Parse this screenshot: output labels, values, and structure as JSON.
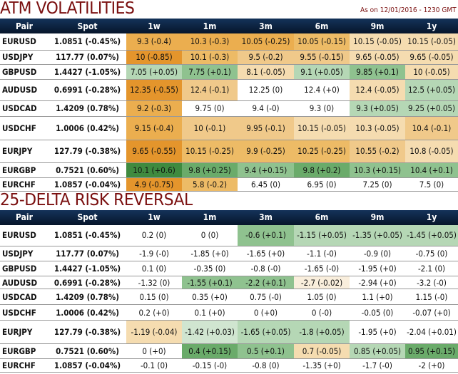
{
  "palette": {
    "D": "#e4952c",
    "O": "#ebae4f",
    "M": "#edbb66",
    "N": "#f0c98a",
    "L": "#f5dcb0",
    "P": "#f9eedc",
    "W": "#ffffff",
    "G0": "#3f8a3f",
    "G1": "#6aab6a",
    "G2": "#8fc28f",
    "G3": "#b5d7b5",
    "G4": "#d0e5d0"
  },
  "columns": [
    "Pair",
    "Spot",
    "1w",
    "1m",
    "3m",
    "6m",
    "9m",
    "1y"
  ],
  "sections": [
    {
      "title": "ATM VOLATILITIES",
      "as_of": "As on 12/01/2016 - 1230 GMT",
      "rows": [
        {
          "pair": "EURUSD",
          "spot": "1.0851 (-0.45%)",
          "h": 23,
          "cells": [
            [
              "9.3 (-0.4)",
              "O"
            ],
            [
              "10.3 (-0.3)",
              "O"
            ],
            [
              "10.05 (-0.25)",
              "O"
            ],
            [
              "10.05 (-0.15)",
              "M"
            ],
            [
              "10.15 (-0.05)",
              "L"
            ],
            [
              "10.15 (-0.05)",
              "L"
            ]
          ]
        },
        {
          "pair": "USDJPY",
          "spot": "117.77 (0.07%)",
          "h": 20,
          "cells": [
            [
              "10 (-0.85)",
              "D"
            ],
            [
              "10.1 (-0.3)",
              "M"
            ],
            [
              "9.5 (-0.2)",
              "N"
            ],
            [
              "9.55 (-0.15)",
              "N"
            ],
            [
              "9.65 (-0.05)",
              "L"
            ],
            [
              "9.65 (-0.05)",
              "L"
            ]
          ]
        },
        {
          "pair": "GBPUSD",
          "spot": "1.4427 (-1.05%)",
          "h": 21,
          "cells": [
            [
              "7.05 (+0.05)",
              "G3"
            ],
            [
              "7.75 (+0.1)",
              "G2"
            ],
            [
              "8.1 (-0.05)",
              "L"
            ],
            [
              "9.1 (+0.05)",
              "G3"
            ],
            [
              "9.85 (+0.1)",
              "G2"
            ],
            [
              "10 (-0.05)",
              "L"
            ]
          ]
        },
        {
          "pair": "AUDUSD",
          "spot": "0.6991 (-0.28%)",
          "h": 30,
          "cells": [
            [
              "12.35 (-0.55)",
              "D"
            ],
            [
              "12.4 (-0.1)",
              "N"
            ],
            [
              "12.25 (0)",
              "W"
            ],
            [
              "12.4 (+0)",
              "W"
            ],
            [
              "12.4 (-0.05)",
              "L"
            ],
            [
              "12.5 (+0.05)",
              "G3"
            ]
          ]
        },
        {
          "pair": "USDCAD",
          "spot": "1.4209 (0.78%)",
          "h": 22,
          "cells": [
            [
              "9.2 (-0.3)",
              "O"
            ],
            [
              "9.75 (0)",
              "W"
            ],
            [
              "9.4 (-0)",
              "W"
            ],
            [
              "9.3 (0)",
              "W"
            ],
            [
              "9.3 (+0.05)",
              "G3"
            ],
            [
              "9.25 (+0.05)",
              "G3"
            ]
          ]
        },
        {
          "pair": "USDCHF",
          "spot": "1.0006 (0.42%)",
          "h": 33,
          "cells": [
            [
              "9.15 (-0.4)",
              "O"
            ],
            [
              "10 (-0.1)",
              "N"
            ],
            [
              "9.95 (-0.1)",
              "N"
            ],
            [
              "10.15 (-0.05)",
              "L"
            ],
            [
              "10.3 (-0.05)",
              "L"
            ],
            [
              "10.4 (-0.1)",
              "N"
            ]
          ]
        },
        {
          "pair": "EURJPY",
          "spot": "127.79 (-0.38%)",
          "h": 32,
          "cells": [
            [
              "9.65 (-0.55)",
              "D"
            ],
            [
              "10.15 (-0.25)",
              "M"
            ],
            [
              "9.9 (-0.25)",
              "M"
            ],
            [
              "10.25 (-0.25)",
              "M"
            ],
            [
              "10.55 (-0.2)",
              "N"
            ],
            [
              "10.8 (-0.05)",
              "L"
            ]
          ]
        },
        {
          "pair": "EURGBP",
          "spot": "0.7521 (0.60%)",
          "h": 21,
          "cells": [
            [
              "10.1 (+0.6)",
              "G0"
            ],
            [
              "9.8 (+0.25)",
              "G1"
            ],
            [
              "9.4 (+0.15)",
              "G2"
            ],
            [
              "9.8 (+0.2)",
              "G1"
            ],
            [
              "10.3 (+0.15)",
              "G2"
            ],
            [
              "10.4 (+0.1)",
              "G2"
            ]
          ]
        },
        {
          "pair": "EURCHF",
          "spot": "1.0857 (-0.04%)",
          "h": 19,
          "cells": [
            [
              "4.9 (-0.75)",
              "D"
            ],
            [
              "5.8 (-0.2)",
              "M"
            ],
            [
              "6.45 (0)",
              "W"
            ],
            [
              "6.95 (0)",
              "W"
            ],
            [
              "7.25 (0)",
              "W"
            ],
            [
              "7.5 (0)",
              "W"
            ]
          ]
        }
      ]
    },
    {
      "title": "25-DELTA RISK REVERSAL",
      "rows": [
        {
          "pair": "EURUSD",
          "spot": "1.0851 (-0.45%)",
          "h": 30,
          "cells": [
            [
              "0.2 (0)",
              "W"
            ],
            [
              "0 (0)",
              "W"
            ],
            [
              "-0.6 (+0.1)",
              "G2"
            ],
            [
              "-1.15 (+0.05)",
              "G3"
            ],
            [
              "-1.35 (+0.05)",
              "G3"
            ],
            [
              "-1.45 (+0.05)",
              "G3"
            ]
          ]
        },
        {
          "pair": "USDJPY",
          "spot": "117.77 (0.07%)",
          "h": 21,
          "cells": [
            [
              "-1.9 (-0)",
              "W"
            ],
            [
              "-1.85 (+0)",
              "W"
            ],
            [
              "-1.65 (+0)",
              "W"
            ],
            [
              "-1.1 (-0)",
              "W"
            ],
            [
              "-0.9 (0)",
              "W"
            ],
            [
              "-0.75 (0)",
              "W"
            ]
          ]
        },
        {
          "pair": "GBPUSD",
          "spot": "1.4427 (-1.05%)",
          "h": 21,
          "cells": [
            [
              "0.1 (0)",
              "W"
            ],
            [
              "-0.35 (0)",
              "W"
            ],
            [
              "-0.8 (-0)",
              "W"
            ],
            [
              "-1.65 (-0)",
              "W"
            ],
            [
              "-1.95 (+0)",
              "W"
            ],
            [
              "-2.1 (0)",
              "W"
            ]
          ]
        },
        {
          "pair": "AUDUSD",
          "spot": "0.6991 (-0.28%)",
          "h": 18,
          "cells": [
            [
              "-1.32 (0)",
              "W"
            ],
            [
              "-1.55 (+0.1)",
              "G2"
            ],
            [
              "-2.2 (+0.1)",
              "G2"
            ],
            [
              "-2.7 (-0.02)",
              "P"
            ],
            [
              "-2.94 (+0)",
              "W"
            ],
            [
              "-3.2 (-0)",
              "W"
            ]
          ]
        },
        {
          "pair": "USDCAD",
          "spot": "1.4209 (0.78%)",
          "h": 22,
          "cells": [
            [
              "0.15 (0)",
              "W"
            ],
            [
              "0.35 (+0)",
              "W"
            ],
            [
              "0.75 (-0)",
              "W"
            ],
            [
              "1.05 (0)",
              "W"
            ],
            [
              "1.1 (+0)",
              "W"
            ],
            [
              "1.15 (-0)",
              "W"
            ]
          ]
        },
        {
          "pair": "USDCHF",
          "spot": "1.0006 (0.42%)",
          "h": 22,
          "cells": [
            [
              "0.2 (+0)",
              "W"
            ],
            [
              "0.1 (+0)",
              "W"
            ],
            [
              "0 (+0)",
              "W"
            ],
            [
              "0 (-0)",
              "W"
            ],
            [
              "-0.05 (0)",
              "W"
            ],
            [
              "-0.07 (+0)",
              "W"
            ]
          ]
        },
        {
          "pair": "EURJPY",
          "spot": "127.79 (-0.38%)",
          "h": 33,
          "cells": [
            [
              "-1.19 (-0.04)",
              "L"
            ],
            [
              "-1.42 (+0.03)",
              "G4"
            ],
            [
              "-1.65 (+0.05)",
              "G3"
            ],
            [
              "-1.8 (+0.05)",
              "G3"
            ],
            [
              "-1.95 (+0)",
              "W"
            ],
            [
              "-2.04 (+0.01)",
              "W"
            ]
          ]
        },
        {
          "pair": "EURGBP",
          "spot": "0.7521 (0.60%)",
          "h": 21,
          "cells": [
            [
              "0 (+0)",
              "W"
            ],
            [
              "0.4 (+0.15)",
              "G1"
            ],
            [
              "0.5 (+0.1)",
              "G2"
            ],
            [
              "0.7 (-0.05)",
              "L"
            ],
            [
              "0.85 (+0.05)",
              "G3"
            ],
            [
              "0.95 (+0.15)",
              "G1"
            ]
          ]
        },
        {
          "pair": "EURCHF",
          "spot": "1.0857 (-0.04%)",
          "h": 19,
          "cells": [
            [
              "-0.1 (0)",
              "W"
            ],
            [
              "-0.15 (-0)",
              "W"
            ],
            [
              "-0.8 (0)",
              "W"
            ],
            [
              "-1.35 (+0)",
              "W"
            ],
            [
              "-1.7 (-0)",
              "W"
            ],
            [
              "-2 (+0)",
              "W"
            ]
          ]
        }
      ]
    }
  ]
}
